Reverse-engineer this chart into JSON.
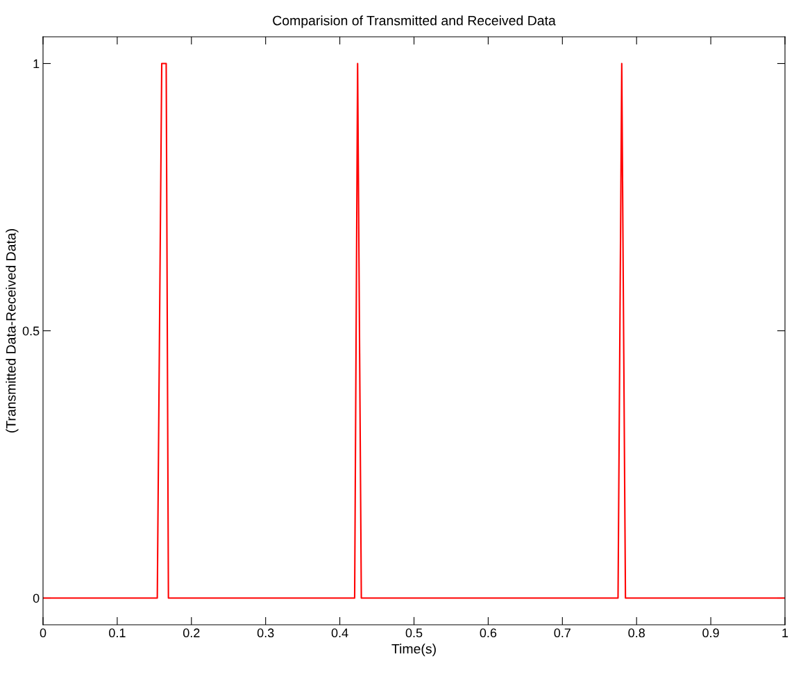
{
  "chart_data": {
    "type": "line",
    "title": "Comparision of Transmitted and Received Data",
    "xlabel": "Time(s)",
    "ylabel": "(Transmitted Data-Received Data)",
    "series": [
      {
        "color": "#ff0000",
        "x": [
          0,
          0.154,
          0.16,
          0.166,
          0.169,
          0.42,
          0.424,
          0.429,
          0.775,
          0.78,
          0.785,
          1
        ],
        "values": [
          0,
          0,
          1,
          1,
          0,
          0,
          1,
          0,
          0,
          1,
          0,
          0
        ]
      }
    ],
    "xlim": [
      0,
      1
    ],
    "ylim": [
      -0.05,
      1.05
    ],
    "xticks": [
      0,
      0.1,
      0.2,
      0.3,
      0.4,
      0.5,
      0.6,
      0.7,
      0.8,
      0.9,
      1
    ],
    "yticks": [
      0,
      0.5,
      1
    ],
    "grid": false,
    "legend": false,
    "marker": "none",
    "line_style": "solid"
  }
}
